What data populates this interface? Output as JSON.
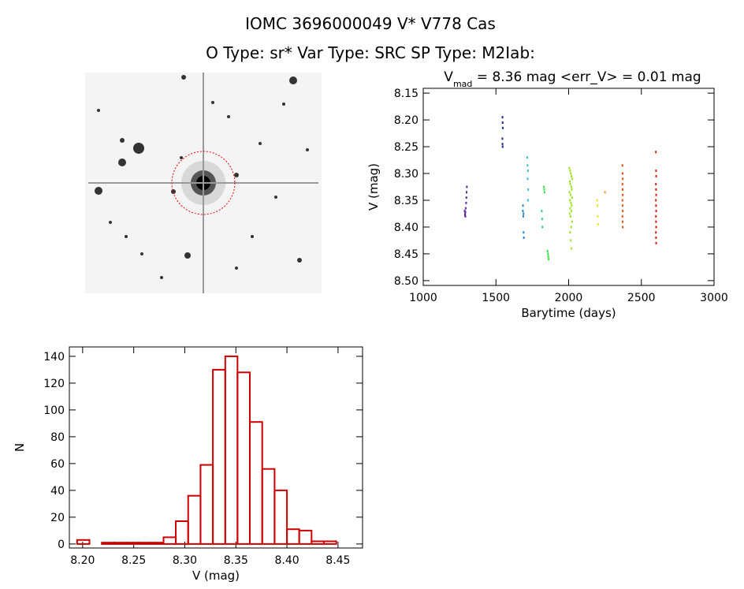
{
  "header": {
    "title": "IOMC 3696000049    V* V778 Cas",
    "subtitle": "O Type: sr*  Var Type: SRC  SP Type: M2Iab:"
  },
  "chart_data": [
    {
      "type": "scatter",
      "title": {
        "main": "V",
        "sub": "mad",
        "rest": " = 8.36 mag <err_V> = 0.01 mag"
      },
      "x_label": "Barytime (days)",
      "y_label": "V (mag)",
      "xlim": [
        1000,
        3000
      ],
      "xticks": [
        1000,
        1500,
        2000,
        2500,
        3000
      ],
      "ylim": [
        8.509,
        8.141
      ],
      "yticks": [
        8.15,
        {
          "value": 8.2,
          "label": "8.20"
        },
        8.25,
        {
          "value": 8.3,
          "label": "8.30"
        },
        8.35,
        {
          "value": 8.4,
          "label": "8.40"
        },
        8.45,
        {
          "value": 8.5,
          "label": "8.50"
        }
      ],
      "series": [
        {
          "color": "#5b2b9a",
          "x": [
            1285,
            1288,
            1290,
            1292,
            1295,
            1297,
            1298,
            1300,
            1290,
            1287
          ],
          "y": [
            8.37,
            8.375,
            8.38,
            8.365,
            8.355,
            8.345,
            8.335,
            8.325,
            8.372,
            8.378
          ]
        },
        {
          "color": "#1f2a8c",
          "x": [
            1545,
            1546,
            1547,
            1544,
            1545,
            1546
          ],
          "y": [
            8.195,
            8.205,
            8.215,
            8.235,
            8.245,
            8.25
          ]
        },
        {
          "color": "#2a7fc8",
          "x": [
            1685,
            1688,
            1690,
            1692,
            1686,
            1690
          ],
          "y": [
            8.37,
            8.38,
            8.41,
            8.42,
            8.36,
            8.375
          ]
        },
        {
          "color": "#30c0d8",
          "x": [
            1715,
            1717,
            1720,
            1718,
            1722,
            1720
          ],
          "y": [
            8.27,
            8.285,
            8.295,
            8.31,
            8.33,
            8.35
          ]
        },
        {
          "color": "#30c8a0",
          "x": [
            1815,
            1818,
            1820
          ],
          "y": [
            8.37,
            8.385,
            8.4
          ]
        },
        {
          "color": "#40e050",
          "x": [
            1830,
            1832,
            1834
          ],
          "y": [
            8.325,
            8.33,
            8.335
          ]
        },
        {
          "color": "#30e040",
          "x": [
            1855,
            1858,
            1860,
            1862
          ],
          "y": [
            8.445,
            8.45,
            8.455,
            8.46
          ]
        },
        {
          "color": "#a0e020",
          "x": [
            2005,
            2010,
            2015,
            2020,
            2025,
            2008,
            2012,
            2018,
            2022,
            2006,
            2014,
            2024,
            2009,
            2016,
            2021,
            2011,
            2019,
            2007,
            2013,
            2023,
            2017,
            2010,
            2015,
            2020
          ],
          "y": [
            8.29,
            8.295,
            8.3,
            8.305,
            8.31,
            8.315,
            8.32,
            8.325,
            8.33,
            8.335,
            8.34,
            8.345,
            8.35,
            8.355,
            8.36,
            8.365,
            8.37,
            8.375,
            8.38,
            8.39,
            8.4,
            8.41,
            8.425,
            8.44
          ]
        },
        {
          "color": "#f0e020",
          "x": [
            2195,
            2198,
            2200,
            2202
          ],
          "y": [
            8.35,
            8.36,
            8.38,
            8.395
          ]
        },
        {
          "color": "#f0a020",
          "x": [
            2250
          ],
          "y": [
            8.335
          ]
        },
        {
          "color": "#e05010",
          "x": [
            2370,
            2371,
            2372,
            2370,
            2371,
            2372,
            2370,
            2371,
            2372,
            2370,
            2371,
            2372
          ],
          "y": [
            8.285,
            8.3,
            8.31,
            8.32,
            8.33,
            8.34,
            8.35,
            8.36,
            8.37,
            8.38,
            8.39,
            8.4
          ]
        },
        {
          "color": "#d02010",
          "x": [
            2600,
            2601,
            2602,
            2600,
            2601,
            2602,
            2600,
            2601,
            2602,
            2600,
            2601,
            2602,
            2600,
            2601,
            2602
          ],
          "y": [
            8.26,
            8.295,
            8.305,
            8.32,
            8.33,
            8.34,
            8.35,
            8.36,
            8.37,
            8.38,
            8.39,
            8.4,
            8.41,
            8.42,
            8.43
          ]
        }
      ]
    },
    {
      "type": "histogram",
      "x_label": "V (mag)",
      "y_label": "N",
      "color": "#cc0000",
      "bins": [
        8.1946,
        8.2067,
        8.2188,
        8.2308,
        8.2429,
        8.255,
        8.2671,
        8.2792,
        8.2912,
        8.3033,
        8.3154,
        8.3275,
        8.3396,
        8.3516,
        8.3637,
        8.3758,
        8.3879,
        8.4,
        8.412,
        8.4241,
        8.4362,
        8.4483
      ],
      "values": [
        3,
        0,
        1,
        1,
        1,
        1,
        1,
        5,
        17,
        36,
        59,
        130,
        140,
        128,
        91,
        56,
        40,
        11,
        10,
        2,
        2
      ],
      "xlim": [
        8.187,
        8.474
      ],
      "xticks": [
        {
          "value": 8.2,
          "label": "8.20"
        },
        8.25,
        {
          "value": 8.3,
          "label": "8.30"
        },
        8.35,
        {
          "value": 8.4,
          "label": "8.40"
        },
        8.45
      ],
      "ylim": [
        -3,
        147
      ],
      "yticks": [
        0,
        20,
        40,
        60,
        80,
        100,
        120,
        140
      ]
    }
  ]
}
